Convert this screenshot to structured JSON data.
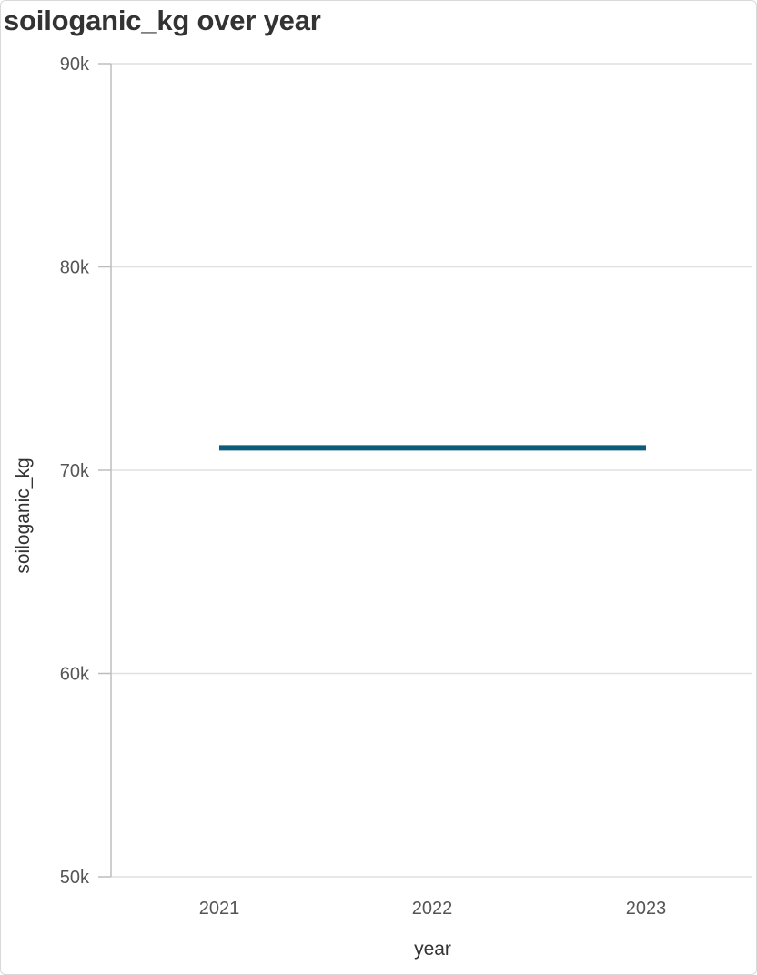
{
  "title": "soiloganic_kg over year",
  "colors": {
    "series": "#0b5c7a",
    "grid": "#e0e0e0",
    "axis": "#bdbdbd"
  },
  "chart_data": {
    "type": "line",
    "title": "soiloganic_kg over year",
    "xlabel": "year",
    "ylabel": "soiloganic_kg",
    "x": [
      "2021",
      "2022",
      "2023"
    ],
    "series": [
      {
        "values": [
          71100,
          71100,
          71100
        ]
      }
    ],
    "ylim": [
      50000,
      90000
    ],
    "yticks": [
      50000,
      60000,
      70000,
      80000,
      90000
    ],
    "ytick_labels": [
      "50k",
      "60k",
      "70k",
      "80k",
      "90k"
    ],
    "grid": true,
    "legend": "none"
  }
}
